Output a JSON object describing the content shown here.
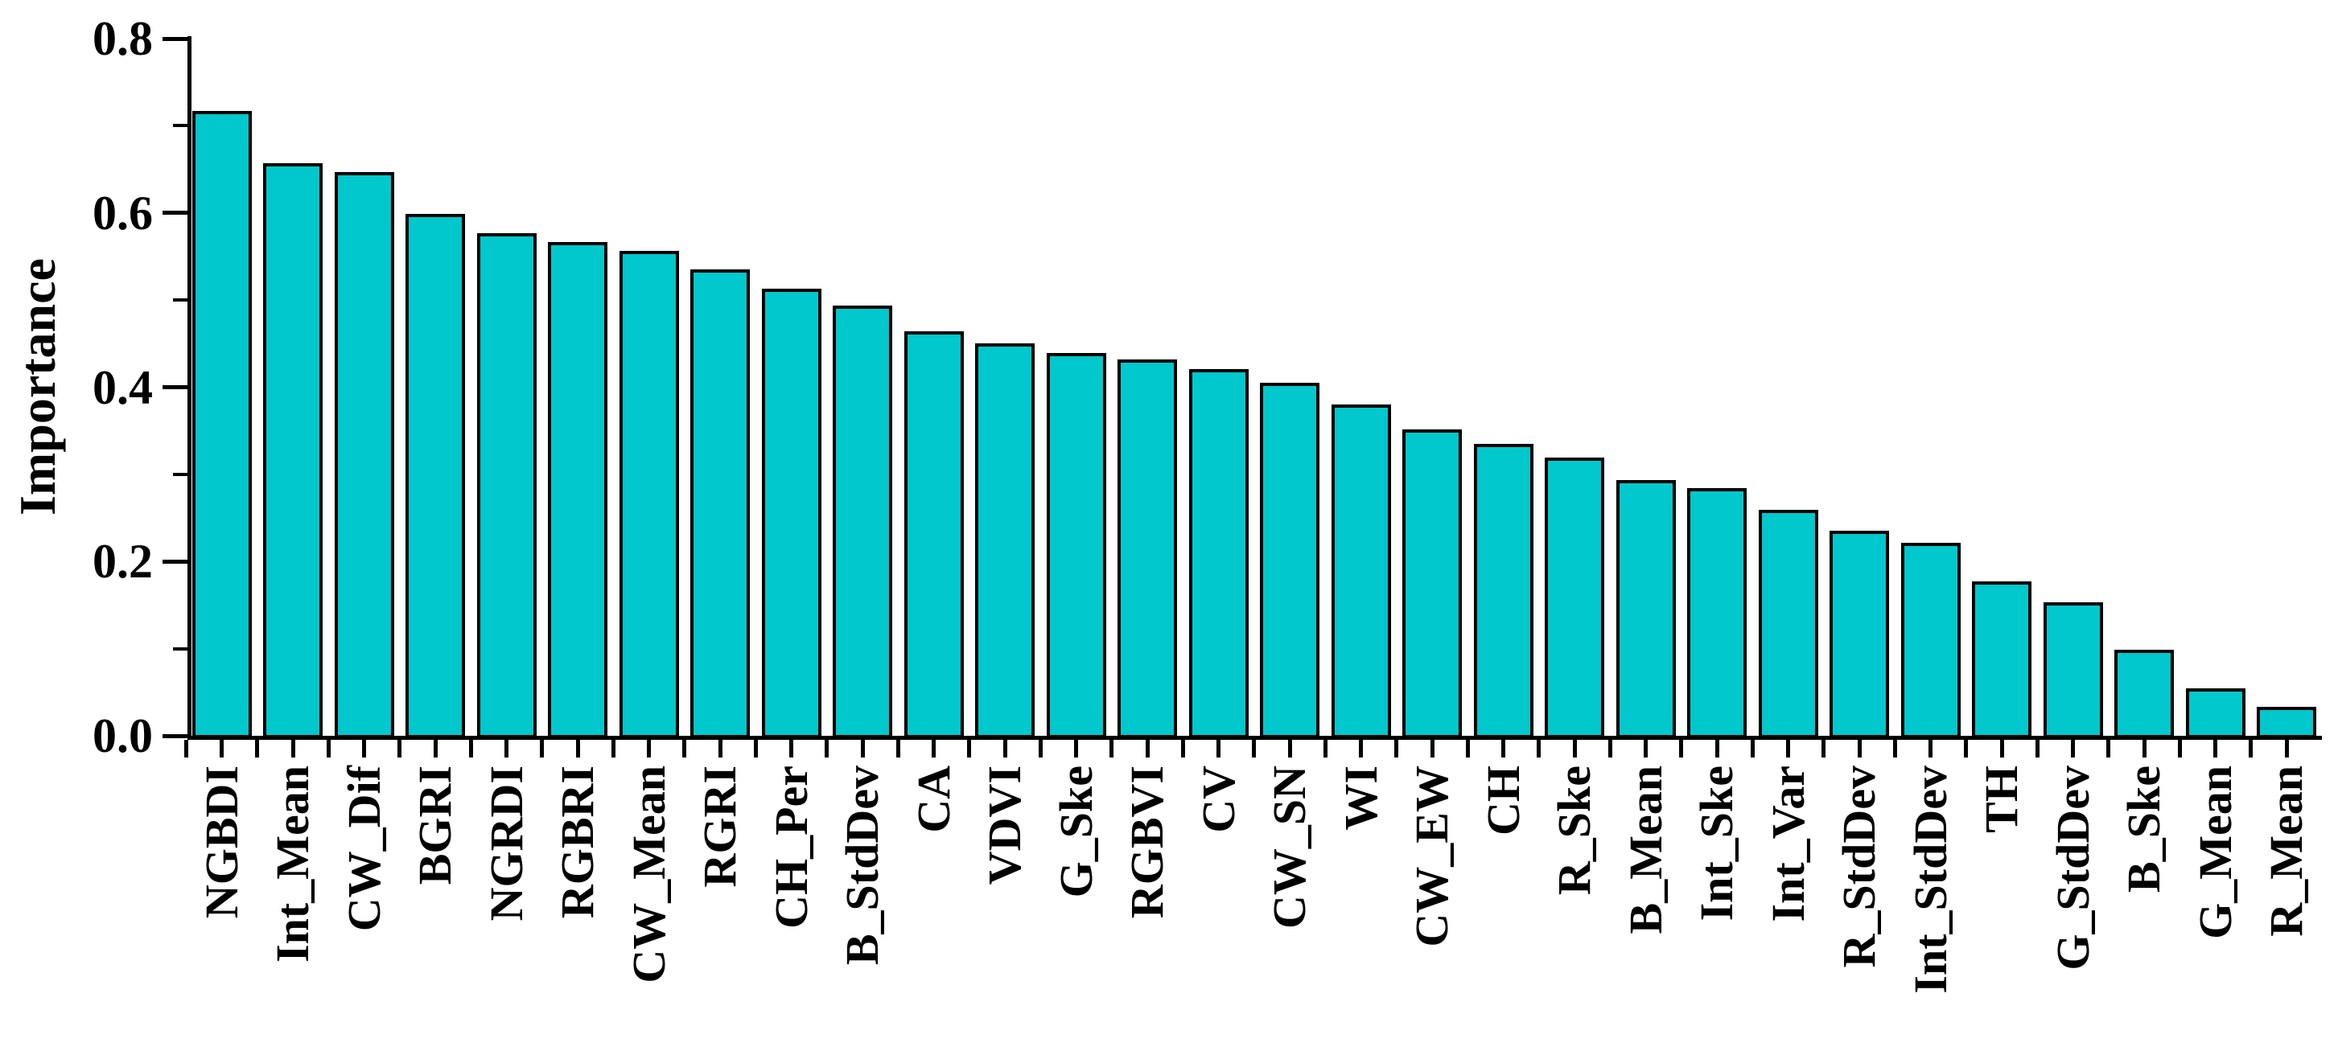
{
  "chart_data": {
    "type": "bar",
    "title": "",
    "xlabel": "",
    "ylabel": "Importance",
    "ylim": [
      0.0,
      0.8
    ],
    "yticks": [
      0.0,
      0.2,
      0.4,
      0.6,
      0.8
    ],
    "ytick_labels": [
      "0.0",
      "0.2",
      "0.4",
      "0.6",
      "0.8"
    ],
    "minor_yticks": [
      0.1,
      0.3,
      0.5,
      0.7
    ],
    "grid": "off",
    "legend": "none",
    "background_color": "#FFFFFF",
    "bar_color": "#00C8CC",
    "bar_border_color": "#000000",
    "axis_color": "#000000",
    "text_color": "#000000",
    "categories": [
      "NGBDI",
      "Int_Mean",
      "CW_Dif",
      "BGRI",
      "NGRDI",
      "RGBRI",
      "CW_Mean",
      "RGRI",
      "CH_Per",
      "B_StdDev",
      "CA",
      "VDVI",
      "G_Ske",
      "RGBVI",
      "CV",
      "CW_SN",
      "WI",
      "CW_EW",
      "CH",
      "R_Ske",
      "B_Mean",
      "Int_Ske",
      "Int_Var",
      "R_StdDev",
      "Int_StdDev",
      "TH",
      "G_StdDev",
      "B_Ske",
      "G_Mean",
      "R_Mean"
    ],
    "values": [
      0.715,
      0.655,
      0.645,
      0.597,
      0.575,
      0.565,
      0.555,
      0.533,
      0.511,
      0.492,
      0.462,
      0.448,
      0.437,
      0.43,
      0.419,
      0.403,
      0.378,
      0.35,
      0.333,
      0.317,
      0.292,
      0.282,
      0.257,
      0.233,
      0.22,
      0.175,
      0.151,
      0.097,
      0.053,
      0.031
    ]
  }
}
